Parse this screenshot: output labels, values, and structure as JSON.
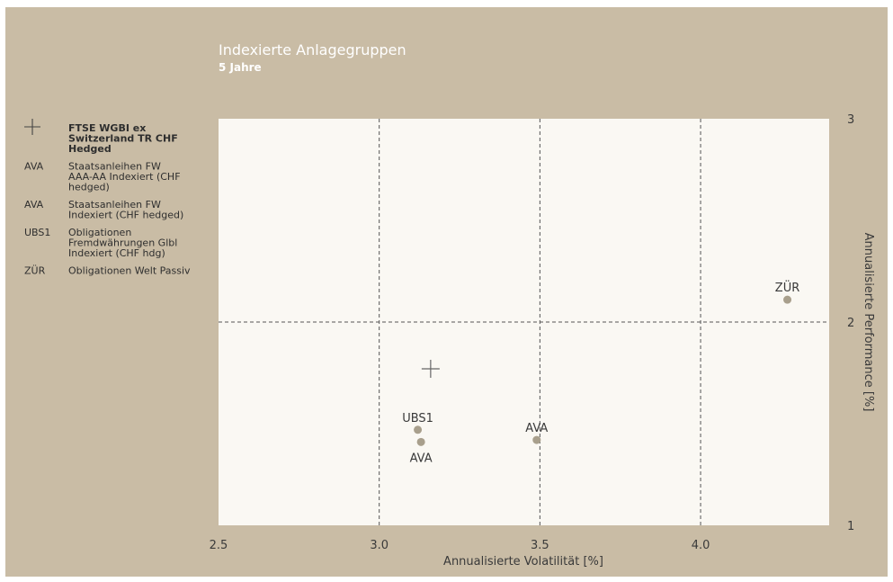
{
  "chart_data": {
    "type": "scatter",
    "title": "Indexierte Anlagegruppen",
    "subtitle": "5 Jahre",
    "xlabel": "Annualisierte Volatilität [%]",
    "ylabel": "Annualisierte Performance [%]",
    "xlim": [
      2.5,
      4.4
    ],
    "ylim": [
      1,
      3
    ],
    "xticks": [
      "2.5",
      "3.0",
      "3.5",
      "4.0"
    ],
    "xtick_values": [
      2.5,
      3.0,
      3.5,
      4.0
    ],
    "yticks": [
      "1",
      "2",
      "3"
    ],
    "ytick_values": [
      1,
      2,
      3
    ],
    "y_axis_side": "right",
    "grid_x": [
      3.0,
      3.5,
      4.0
    ],
    "grid_y": [
      2
    ],
    "marker_color": "#a89f8c",
    "points": [
      {
        "label": "+",
        "x": 3.16,
        "y": 1.77,
        "marker": "plus",
        "label_pos": "none"
      },
      {
        "label": "UBS1",
        "x": 3.12,
        "y": 1.47,
        "marker": "dot",
        "label_pos": "above"
      },
      {
        "label": "AVA",
        "x": 3.13,
        "y": 1.41,
        "marker": "dot",
        "label_pos": "below"
      },
      {
        "label": "AVA",
        "x": 3.49,
        "y": 1.42,
        "marker": "dot",
        "label_pos": "above"
      },
      {
        "label": "ZÜR",
        "x": 4.27,
        "y": 2.11,
        "marker": "dot",
        "label_pos": "above"
      }
    ],
    "legend": {
      "position": "left",
      "entries": [
        {
          "code": "+",
          "marker": "plus",
          "lines": [
            "FTSE WGBI ex",
            "Switzerland TR CHF",
            "Hedged"
          ],
          "bold": true
        },
        {
          "code": "AVA",
          "marker": "text",
          "lines": [
            "Staatsanleihen FW",
            "AAA-AA Indexiert (CHF",
            "hedged)"
          ],
          "bold": false
        },
        {
          "code": "AVA",
          "marker": "text",
          "lines": [
            "Staatsanleihen FW",
            "Indexiert (CHF hedged)"
          ],
          "bold": false
        },
        {
          "code": "UBS1",
          "marker": "text",
          "lines": [
            "Obligationen",
            "Fremdwährungen Glbl",
            "Indexiert (CHF hdg)"
          ],
          "bold": false
        },
        {
          "code": "ZÜR",
          "marker": "text",
          "lines": [
            "Obligationen Welt Passiv"
          ],
          "bold": false
        }
      ]
    }
  },
  "colors": {
    "background": "#c9bca5",
    "plot_area": "#faf8f3",
    "text": "#3a3a3a",
    "title": "#ffffff",
    "marker": "#a89f8c"
  }
}
